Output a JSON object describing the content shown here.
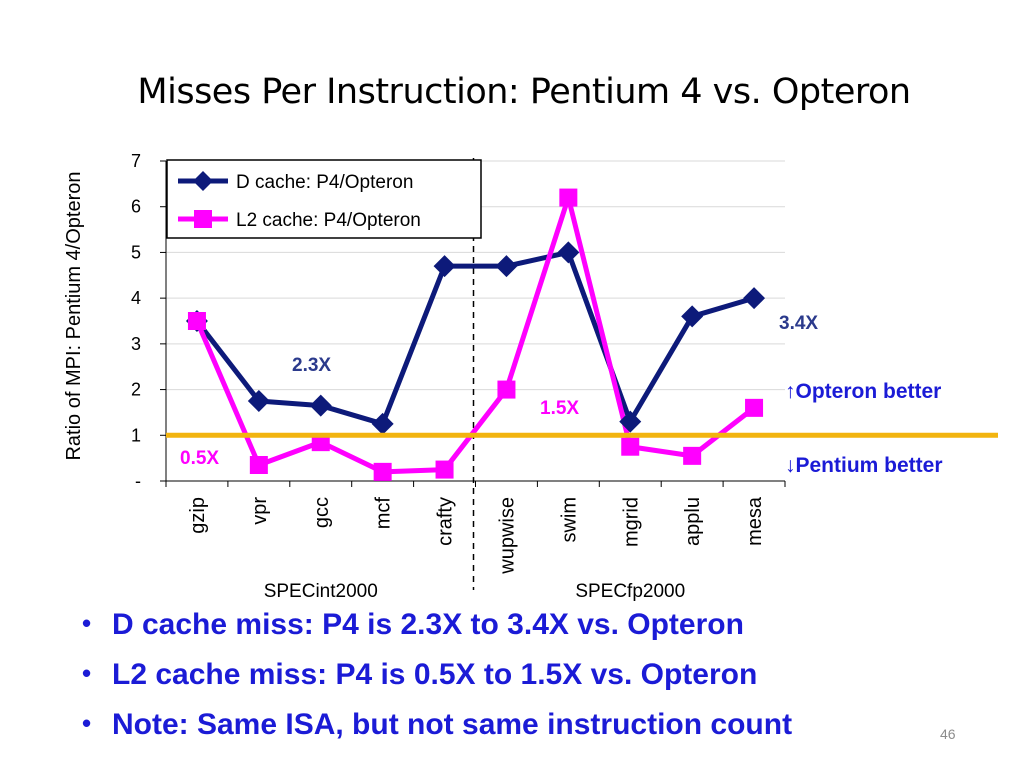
{
  "slide": {
    "title": "Misses Per Instruction: Pentium 4 vs. Opteron",
    "page_number": "46",
    "bullets": [
      "D cache miss: P4 is 2.3X to 3.4X vs. Opteron",
      "L2 cache miss: P4 is 0.5X to 1.5X vs. Opteron",
      "Note: Same ISA, but not same instruction count"
    ],
    "bullet_color": "#1b1bd6"
  },
  "chart_data": {
    "type": "line",
    "title": "",
    "xlabel": "",
    "ylabel": "Ratio of MPI: Pentium 4/Opteron",
    "ylim": [
      0,
      7
    ],
    "y_ticks": [
      "-",
      "1",
      "2",
      "3",
      "4",
      "5",
      "6",
      "7"
    ],
    "grid": true,
    "legend_position": "top-left",
    "categories": [
      "gzip",
      "vpr",
      "gcc",
      "mcf",
      "crafty",
      "wupwise",
      "swim",
      "mgrid",
      "applu",
      "mesa"
    ],
    "groups": [
      {
        "label": "SPECint2000",
        "categories": [
          "gzip",
          "vpr",
          "gcc",
          "mcf",
          "crafty"
        ]
      },
      {
        "label": "SPECfp2000",
        "categories": [
          "wupwise",
          "swim",
          "mgrid",
          "applu",
          "mesa"
        ]
      }
    ],
    "series": [
      {
        "name": "D cache:   P4/Opteron",
        "color": "#0d1a7a",
        "marker": "diamond",
        "values": [
          3.5,
          1.75,
          1.65,
          1.25,
          4.7,
          4.7,
          5.0,
          1.3,
          3.6,
          4.0
        ]
      },
      {
        "name": "L2 cache: P4/Opteron",
        "color": "#ff00ff",
        "marker": "square",
        "values": [
          3.5,
          0.35,
          0.85,
          0.2,
          0.25,
          2.0,
          6.2,
          0.75,
          0.55,
          1.6
        ]
      }
    ],
    "reference_line": {
      "value": 1,
      "color": "#f2b40f"
    },
    "annotations": [
      {
        "text": "2.3X",
        "color": "#2b3a8c"
      },
      {
        "text": "3.4X",
        "color": "#2b3a8c"
      },
      {
        "text": "0.5X",
        "color": "#ff00ff"
      },
      {
        "text": "1.5X",
        "color": "#ff00ff"
      },
      {
        "text": "↑Opteron better",
        "color": "#1b1bd6"
      },
      {
        "text": "↓Pentium better",
        "color": "#1b1bd6"
      }
    ]
  }
}
